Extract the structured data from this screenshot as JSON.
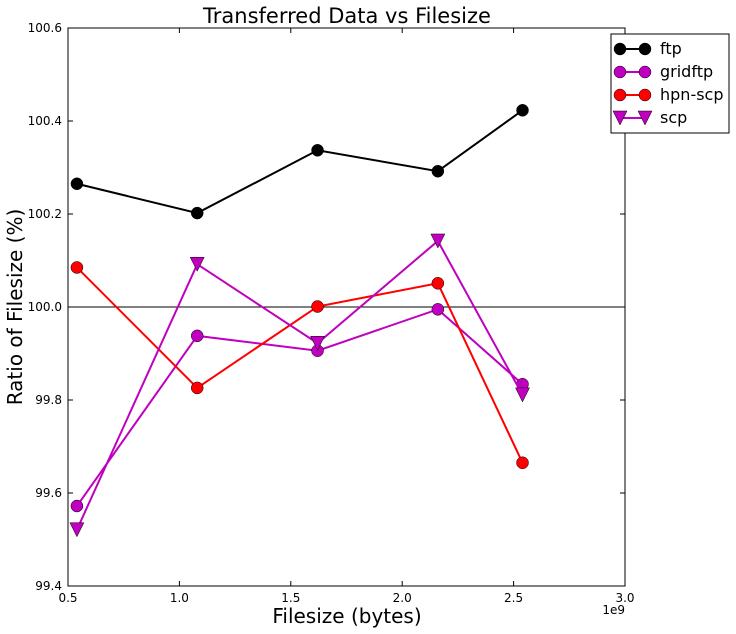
{
  "chart_data": {
    "type": "line",
    "title": "Transferred Data vs Filesize",
    "xlabel": "Filesize (bytes)",
    "ylabel": "Ratio of Filesize (%)",
    "x_exponent_label": "1e9",
    "xlim": [
      0.5,
      3.0
    ],
    "ylim": [
      99.4,
      100.6
    ],
    "x_ticks": [
      0.5,
      1.0,
      1.5,
      2.0,
      2.5,
      3.0
    ],
    "x_tick_labels": [
      "0.5",
      "1.0",
      "1.5",
      "2.0",
      "2.5",
      "3.0"
    ],
    "y_ticks": [
      99.4,
      99.6,
      99.8,
      100.0,
      100.2,
      100.4,
      100.6
    ],
    "y_tick_labels": [
      "99.4",
      "99.6",
      "99.8",
      "100.0",
      "100.2",
      "100.4",
      "100.6"
    ],
    "reference_line": 100.0,
    "grid": false,
    "legend_position": "top-right",
    "x": [
      0.54,
      1.08,
      1.62,
      2.16,
      2.54
    ],
    "series": [
      {
        "name": "ftp",
        "color": "#000000",
        "marker": "circle",
        "values": [
          100.265,
          100.202,
          100.337,
          100.292,
          100.423
        ]
      },
      {
        "name": "gridftp",
        "color": "#bf00bf",
        "marker": "circle",
        "values": [
          99.572,
          99.938,
          99.906,
          99.995,
          99.834
        ]
      },
      {
        "name": "hpn-scp",
        "color": "#ff0000",
        "marker": "circle",
        "values": [
          100.085,
          99.826,
          100.001,
          100.051,
          99.665
        ]
      },
      {
        "name": "scp",
        "color": "#bf00bf",
        "marker": "triangle-down",
        "values": [
          99.521,
          100.092,
          99.922,
          100.142,
          99.811
        ]
      }
    ]
  }
}
